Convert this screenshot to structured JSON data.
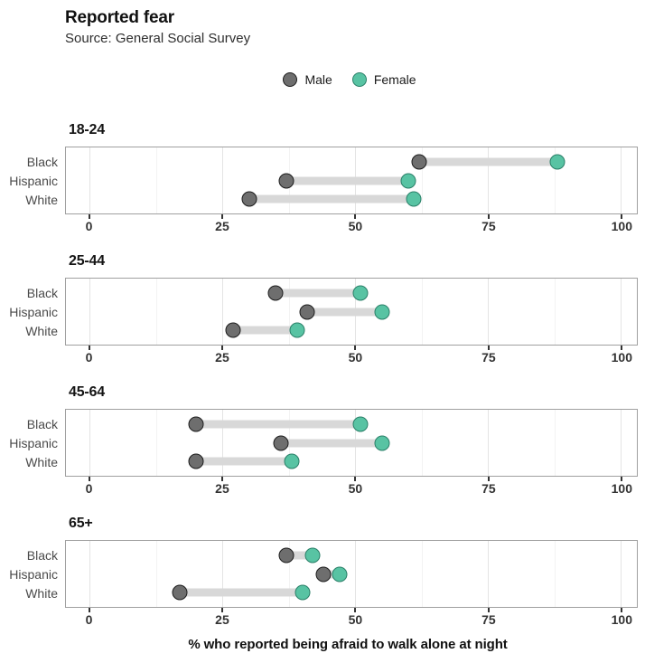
{
  "header": {
    "title": "Reported fear",
    "subtitle": "Source: General Social Survey"
  },
  "chart_data": {
    "type": "scatter",
    "variant": "dumbbell",
    "title": "Reported fear",
    "subtitle": "Source: General Social Survey",
    "xlabel": "% who reported being afraid to walk alone at night",
    "xlim": [
      -4.5,
      103
    ],
    "x_ticks": [
      0,
      25,
      50,
      75,
      100
    ],
    "x_minor_ticks": [
      12.5,
      37.5,
      62.5,
      87.5
    ],
    "grid": true,
    "legend_position": "top-center",
    "legend": [
      {
        "name": "Male",
        "color": "#6e6e6e",
        "stroke": "#1c1c1c"
      },
      {
        "name": "Female",
        "color": "#58c3a3",
        "stroke": "#2a7f68"
      }
    ],
    "categories": [
      "Black",
      "Hispanic",
      "White"
    ],
    "facets": [
      {
        "title": "18-24",
        "rows": [
          {
            "label": "Black",
            "male": 62,
            "female": 88
          },
          {
            "label": "Hispanic",
            "male": 37,
            "female": 60
          },
          {
            "label": "White",
            "male": 30,
            "female": 61
          }
        ]
      },
      {
        "title": "25-44",
        "rows": [
          {
            "label": "Black",
            "male": 35,
            "female": 51
          },
          {
            "label": "Hispanic",
            "male": 41,
            "female": 55
          },
          {
            "label": "White",
            "male": 27,
            "female": 39
          }
        ]
      },
      {
        "title": "45-64",
        "rows": [
          {
            "label": "Black",
            "male": 20,
            "female": 51
          },
          {
            "label": "Hispanic",
            "male": 36,
            "female": 55
          },
          {
            "label": "White",
            "male": 20,
            "female": 38
          }
        ]
      },
      {
        "title": "65+",
        "rows": [
          {
            "label": "Black",
            "male": 37,
            "female": 42
          },
          {
            "label": "Hispanic",
            "male": 44,
            "female": 47
          },
          {
            "label": "White",
            "male": 17,
            "female": 40
          }
        ]
      }
    ],
    "style": {
      "connector_color": "#d8d8d8",
      "panel_border_color": "#a0a0a0",
      "major_grid_color": "#e4e4e4",
      "minor_grid_color": "#f3f3f3"
    }
  }
}
